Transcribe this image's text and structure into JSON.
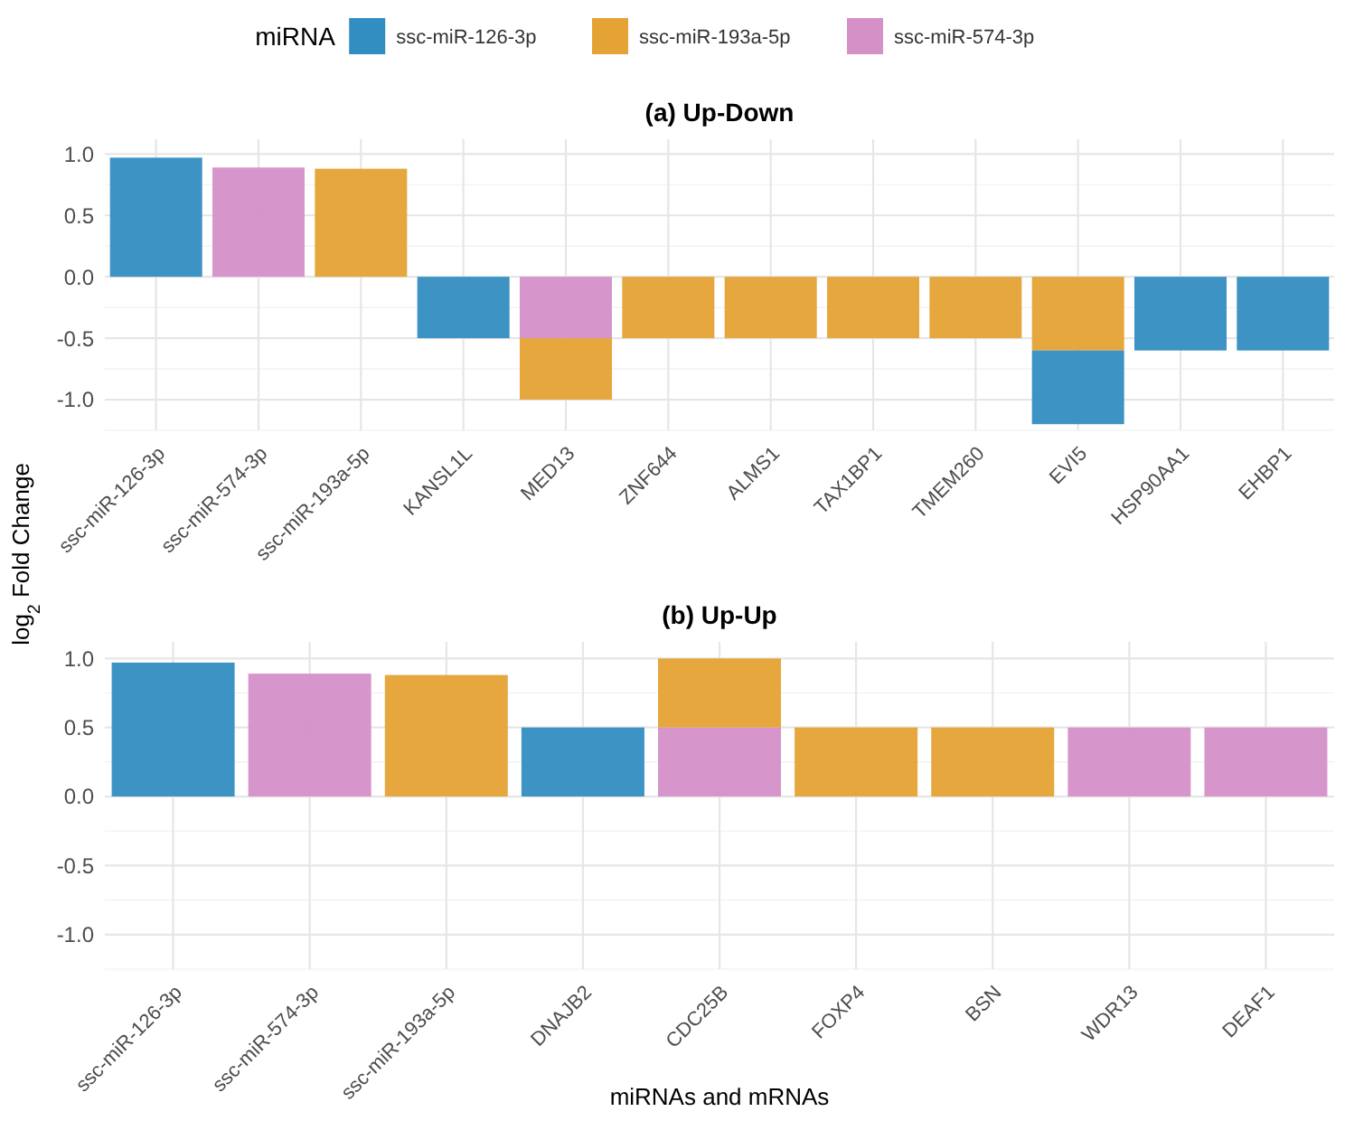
{
  "chart_data": [
    {
      "type": "bar",
      "title": "(a) Up-Down",
      "ylabel": "log$_{2}$ Fold Change",
      "legend_title": "miRNA",
      "legend": "top",
      "stacked": true,
      "grid": true,
      "ylim": [
        -1.25,
        1.12
      ],
      "yticks": [
        {
          "value": -1,
          "label": "-1.0"
        },
        {
          "value": -0.5,
          "label": "-0.5"
        },
        {
          "value": 0,
          "label": "0.0"
        },
        {
          "value": 0.5,
          "label": "0.5"
        },
        {
          "value": 1,
          "label": "1.0"
        }
      ],
      "categories": [
        "ssc-miR-126-3p",
        "ssc-miR-574-3p",
        "ssc-miR-193a-5p",
        "KANSL1L",
        "MED13",
        "ZNF644",
        "ALMS1",
        "TAX1BP1",
        "TMEM260",
        "EVI5",
        "HSP90AA1",
        "EHBP1"
      ],
      "series": [
        {
          "name": "ssc-miR-574-3p",
          "color": "#d590c8",
          "values": [
            null,
            0.89,
            null,
            null,
            -0.5,
            null,
            null,
            null,
            null,
            null,
            null,
            null
          ]
        },
        {
          "name": "ssc-miR-193a-5p",
          "color": "#e5a235",
          "values": [
            null,
            null,
            0.88,
            null,
            -0.5,
            -0.5,
            -0.5,
            -0.5,
            -0.5,
            -0.6,
            null,
            null
          ]
        },
        {
          "name": "ssc-miR-126-3p",
          "color": "#328dc1",
          "values": [
            0.97,
            null,
            null,
            -0.5,
            null,
            null,
            null,
            null,
            null,
            -0.6,
            -0.6,
            -0.6
          ]
        }
      ]
    },
    {
      "type": "bar",
      "title": "(b) Up-Up",
      "xlabel": "miRNAs and mRNAs",
      "stacked": true,
      "grid": true,
      "ylim": [
        -1.25,
        1.12
      ],
      "yticks": [
        {
          "value": -1,
          "label": "-1.0"
        },
        {
          "value": -0.5,
          "label": "-0.5"
        },
        {
          "value": 0,
          "label": "0.0"
        },
        {
          "value": 0.5,
          "label": "0.5"
        },
        {
          "value": 1,
          "label": "1.0"
        }
      ],
      "categories": [
        "ssc-miR-126-3p",
        "ssc-miR-574-3p",
        "ssc-miR-193a-5p",
        "DNAJB2",
        "CDC25B",
        "FOXP4",
        "BSN",
        "WDR13",
        "DEAF1"
      ],
      "series": [
        {
          "color": "#d590c8",
          "values": [
            null,
            0.89,
            null,
            null,
            0.5,
            null,
            null,
            0.5,
            0.5
          ]
        },
        {
          "color": "#e5a235",
          "values": [
            null,
            null,
            0.88,
            null,
            0.5,
            0.5,
            0.5,
            null,
            null
          ]
        },
        {
          "color": "#328dc1",
          "values": [
            0.97,
            null,
            null,
            0.5,
            null,
            null,
            null,
            null,
            null
          ]
        }
      ]
    }
  ]
}
